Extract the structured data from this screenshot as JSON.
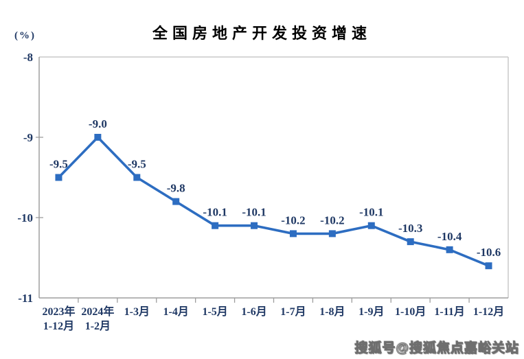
{
  "title": "全国房地产开发投资增速",
  "unit_label": "(%)",
  "watermark": "搜狐号@搜狐焦点嘉峪关站",
  "chart_data": {
    "type": "line",
    "title": "全国房地产开发投资增速",
    "ylabel": "(%)",
    "categories": [
      [
        "2023年",
        "1-12月"
      ],
      [
        "2024年",
        "1-2月"
      ],
      [
        "1-3月"
      ],
      [
        "1-4月"
      ],
      [
        "1-5月"
      ],
      [
        "1-6月"
      ],
      [
        "1-7月"
      ],
      [
        "1-8月"
      ],
      [
        "1-9月"
      ],
      [
        "1-10月"
      ],
      [
        "1-11月"
      ],
      [
        "1-12月"
      ]
    ],
    "values": [
      -9.5,
      -9.0,
      -9.5,
      -9.8,
      -10.1,
      -10.1,
      -10.2,
      -10.2,
      -10.1,
      -10.3,
      -10.4,
      -10.6
    ],
    "data_labels": [
      "-9.5",
      "-9.0",
      "-9.5",
      "-9.8",
      "-10.1",
      "-10.1",
      "-10.2",
      "-10.2",
      "-10.1",
      "-10.3",
      "-10.4",
      "-10.6"
    ],
    "ylim": [
      -11,
      -8
    ],
    "yticks": [
      -8,
      -9,
      -10,
      -11
    ],
    "grid": false,
    "legend": "none",
    "marker": "square",
    "colors": {
      "line": "#2D6DC1",
      "marker": "#2D6DC1",
      "data_label": "#1F3864",
      "axis_label": "#1F3864",
      "axis_line": "#9d9d9d",
      "plot_border": "#c8c8c8",
      "tick": "#9d9d9d"
    }
  }
}
